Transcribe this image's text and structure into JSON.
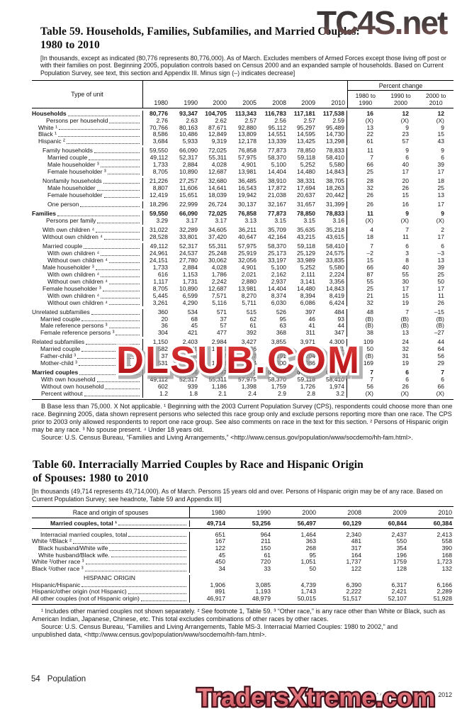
{
  "watermarks": {
    "top": "TC4S.net",
    "middle": "DLSUB.COM",
    "bottom": "TradersXtreme.com"
  },
  "footer": {
    "page_number": "54",
    "section_label": "Population",
    "source_line": "U.S. Census Bureau, Statistical Abstract of the United States: 2012"
  },
  "table59": {
    "title_line1": "Table 59. Households, Families, Subfamilies, and Married Couples:",
    "title_line2": "1980 to 2010",
    "headnote": "[In thousands, except as indicated (80,776 represents 80,776,000). As of March. Excludes members of Armed Forces except those living off post or with their families on post. Beginning 2005, population controls based on Census 2000 and an expanded sample of households. Based on Current Population Survey, see text, this section and Appendix III. Minus sign (–) indicates decrease]",
    "stub_header": "Type of unit",
    "years": [
      "1980",
      "1990",
      "2000",
      "2005",
      "2008",
      "2009",
      "2010"
    ],
    "pct_group_header": "Percent change",
    "pct_headers": [
      "1980 to\n1990",
      "1990 to\n2000",
      "2000 to\n2010"
    ],
    "rows": [
      {
        "label": "Households",
        "ind": 0,
        "b": true,
        "gap": false,
        "v": [
          "80,776",
          "93,347",
          "104,705",
          "113,343",
          "116,783",
          "117,181",
          "117,538"
        ],
        "p": [
          "16",
          "12",
          "12"
        ]
      },
      {
        "label": "Persons per household",
        "ind": 20,
        "b": false,
        "gap": false,
        "v": [
          "2.76",
          "2.63",
          "2.62",
          "2.57",
          "2.56",
          "2.57",
          "2.59"
        ],
        "p": [
          "(X)",
          "(X)",
          "(X)"
        ]
      },
      {
        "label": "White ¹",
        "ind": 9,
        "b": false,
        "gap": false,
        "v": [
          "70,766",
          "80,163",
          "87,671",
          "92,880",
          "95,112",
          "95,297",
          "95,489"
        ],
        "p": [
          "13",
          "9",
          "9"
        ]
      },
      {
        "label": "Black ¹",
        "ind": 9,
        "b": false,
        "gap": false,
        "v": [
          "8,586",
          "10,486",
          "12,849",
          "13,809",
          "14,551",
          "14,595",
          "14,730"
        ],
        "p": [
          "22",
          "23",
          "15"
        ]
      },
      {
        "label": "Hispanic ²",
        "ind": 9,
        "b": false,
        "gap": false,
        "v": [
          "3,684",
          "5,933",
          "9,319",
          "12,178",
          "13,339",
          "13,425",
          "13,298"
        ],
        "p": [
          "61",
          "57",
          "43"
        ]
      },
      {
        "label": "Family households",
        "ind": 15,
        "b": false,
        "gap": true,
        "v": [
          "59,550",
          "66,090",
          "72,025",
          "76,858",
          "77,873",
          "78,850",
          "78,833"
        ],
        "p": [
          "11",
          "9",
          "9"
        ]
      },
      {
        "label": "Married couple",
        "ind": 22,
        "b": false,
        "gap": false,
        "v": [
          "49,112",
          "52,317",
          "55,311",
          "57,975",
          "58,370",
          "59,118",
          "58,410"
        ],
        "p": [
          "7",
          "6",
          "6"
        ]
      },
      {
        "label": "Male householder ³",
        "ind": 22,
        "b": false,
        "gap": false,
        "v": [
          "1,733",
          "2,884",
          "4,028",
          "4,901",
          "5,100",
          "5,252",
          "5,580"
        ],
        "p": [
          "66",
          "40",
          "39"
        ]
      },
      {
        "label": "Female householder ³",
        "ind": 22,
        "b": false,
        "gap": false,
        "v": [
          "8,705",
          "10,890",
          "12,687",
          "13,981",
          "14,404",
          "14,480",
          "14,843"
        ],
        "p": [
          "25",
          "17",
          "17"
        ]
      },
      {
        "label": "Nonfamily households",
        "ind": 15,
        "b": false,
        "gap": true,
        "v": [
          "21,226",
          "27,257",
          "32,680",
          "36,485",
          "38,910",
          "38,331",
          "38,705"
        ],
        "p": [
          "28",
          "20",
          "18"
        ]
      },
      {
        "label": "Male householder",
        "ind": 22,
        "b": false,
        "gap": false,
        "v": [
          "8,807",
          "11,606",
          "14,641",
          "16,543",
          "17,872",
          "17,694",
          "18,263"
        ],
        "p": [
          "32",
          "26",
          "25"
        ]
      },
      {
        "label": "Female householder",
        "ind": 22,
        "b": false,
        "gap": false,
        "v": [
          "12,419",
          "15,651",
          "18,039",
          "19,942",
          "21,038",
          "20,637",
          "20,442"
        ],
        "p": [
          "26",
          "15",
          "13"
        ]
      },
      {
        "label": "One person",
        "ind": 22,
        "b": false,
        "gap": true,
        "v": [
          "18,296",
          "22,999",
          "26,724",
          "30,137",
          "32,167",
          "31,657",
          "31,399"
        ],
        "p": [
          "26",
          "16",
          "17"
        ]
      },
      {
        "label": "Families",
        "ind": 0,
        "b": true,
        "gap": true,
        "v": [
          "59,550",
          "66,090",
          "72,025",
          "76,858",
          "77,873",
          "78,850",
          "78,833"
        ],
        "p": [
          "11",
          "9",
          "9"
        ]
      },
      {
        "label": "Persons per family",
        "ind": 20,
        "b": false,
        "gap": false,
        "v": [
          "3.29",
          "3.17",
          "3.17",
          "3.13",
          "3.15",
          "3.15",
          "3.16"
        ],
        "p": [
          "(X)",
          "(X)",
          "(X)"
        ]
      },
      {
        "label": "With own children ⁴",
        "ind": 15,
        "b": false,
        "gap": true,
        "v": [
          "31,022",
          "32,289",
          "34,605",
          "36,211",
          "35,709",
          "35,635",
          "35,218"
        ],
        "p": [
          "4",
          "7",
          "2"
        ]
      },
      {
        "label": "Without own children ⁴",
        "ind": 15,
        "b": false,
        "gap": false,
        "v": [
          "28,528",
          "33,801",
          "37,420",
          "40,647",
          "42,164",
          "43,215",
          "43,615"
        ],
        "p": [
          "18",
          "11",
          "17"
        ]
      },
      {
        "label": "Married couple",
        "ind": 15,
        "b": false,
        "gap": true,
        "v": [
          "49,112",
          "52,317",
          "55,311",
          "57,975",
          "58,370",
          "59,118",
          "58,410"
        ],
        "p": [
          "7",
          "6",
          "6"
        ]
      },
      {
        "label": "With own children ⁴",
        "ind": 22,
        "b": false,
        "gap": false,
        "v": [
          "24,961",
          "24,537",
          "25,248",
          "25,919",
          "25,173",
          "25,129",
          "24,575"
        ],
        "p": [
          "–2",
          "3",
          "–3"
        ]
      },
      {
        "label": "Without own children ⁴",
        "ind": 22,
        "b": false,
        "gap": false,
        "v": [
          "24,151",
          "27,780",
          "30,062",
          "32,056",
          "33,197",
          "33,989",
          "33,835"
        ],
        "p": [
          "15",
          "8",
          "13"
        ]
      },
      {
        "label": "Male householder ³",
        "ind": 15,
        "b": false,
        "gap": false,
        "v": [
          "1,733",
          "2,884",
          "4,028",
          "4,901",
          "5,100",
          "5,252",
          "5,580"
        ],
        "p": [
          "66",
          "40",
          "39"
        ]
      },
      {
        "label": "With own children ⁴",
        "ind": 22,
        "b": false,
        "gap": false,
        "v": [
          "616",
          "1,153",
          "1,786",
          "2,021",
          "2,162",
          "2,111",
          "2,224"
        ],
        "p": [
          "87",
          "55",
          "25"
        ]
      },
      {
        "label": "Without own children ⁴",
        "ind": 22,
        "b": false,
        "gap": false,
        "v": [
          "1,117",
          "1,731",
          "2,242",
          "2,880",
          "2,937",
          "3,141",
          "3,356"
        ],
        "p": [
          "55",
          "30",
          "50"
        ]
      },
      {
        "label": "Female householder ³",
        "ind": 15,
        "b": false,
        "gap": false,
        "v": [
          "8,705",
          "10,890",
          "12,687",
          "13,981",
          "14,404",
          "14,480",
          "14,843"
        ],
        "p": [
          "25",
          "17",
          "17"
        ]
      },
      {
        "label": "With own children ⁴",
        "ind": 22,
        "b": false,
        "gap": false,
        "v": [
          "5,445",
          "6,599",
          "7,571",
          "8,270",
          "8,374",
          "8,394",
          "8,419"
        ],
        "p": [
          "21",
          "15",
          "11"
        ]
      },
      {
        "label": "Without own children ⁴",
        "ind": 22,
        "b": false,
        "gap": false,
        "v": [
          "3,261",
          "4,290",
          "5,116",
          "5,711",
          "6,030",
          "6,086",
          "6,424"
        ],
        "p": [
          "32",
          "19",
          "26"
        ]
      },
      {
        "label": "Unrelated subfamilies",
        "ind": 0,
        "b": false,
        "gap": true,
        "v": [
          "360",
          "534",
          "571",
          "515",
          "526",
          "397",
          "484"
        ],
        "p": [
          "48",
          "7",
          "–15"
        ]
      },
      {
        "label": "Married couple",
        "ind": 12,
        "b": false,
        "gap": false,
        "v": [
          "20",
          "68",
          "37",
          "62",
          "95",
          "46",
          "93"
        ],
        "p": [
          "(B)",
          "(B)",
          "(B)"
        ]
      },
      {
        "label": "Male reference persons ³",
        "ind": 12,
        "b": false,
        "gap": false,
        "v": [
          "36",
          "45",
          "57",
          "61",
          "63",
          "41",
          "44"
        ],
        "p": [
          "(B)",
          "(B)",
          "(B)"
        ]
      },
      {
        "label": "Female reference persons ³",
        "ind": 12,
        "b": false,
        "gap": false,
        "v": [
          "304",
          "421",
          "477",
          "392",
          "368",
          "311",
          "347"
        ],
        "p": [
          "38",
          "13",
          "–27"
        ]
      },
      {
        "label": "Related subfamilies",
        "ind": 0,
        "b": false,
        "gap": true,
        "v": [
          "1,150",
          "2,403",
          "2,984",
          "3,427",
          "3,855",
          "3,971",
          "4,300"
        ],
        "p": [
          "109",
          "24",
          "44"
        ]
      },
      {
        "label": "Married couple",
        "ind": 12,
        "b": false,
        "gap": false,
        "v": [
          "582",
          "871",
          "1,149",
          "1,336",
          "1,664",
          "1,681",
          "1,881"
        ],
        "p": [
          "50",
          "32",
          "64"
        ]
      },
      {
        "label": "Father-child ³",
        "ind": 12,
        "b": false,
        "gap": false,
        "v": [
          "37",
          "104",
          "137",
          "187",
          "191",
          "204",
          "213"
        ],
        "p": [
          "(B)",
          "31",
          "56"
        ]
      },
      {
        "label": "Mother-child ³",
        "ind": 12,
        "b": false,
        "gap": false,
        "v": [
          "531",
          "1,428",
          "1,698",
          "1,904",
          "2,000",
          "2,086",
          "2,206"
        ],
        "p": [
          "169",
          "19",
          "29"
        ]
      },
      {
        "label": "Married couples",
        "ind": 0,
        "b": true,
        "gap": true,
        "v": [
          "49,714",
          "53,256",
          "56,497",
          "59,373",
          "60,129",
          "60,844",
          "60,384"
        ],
        "p": [
          "7",
          "6",
          "7"
        ]
      },
      {
        "label": "With own household",
        "ind": 13,
        "b": false,
        "gap": false,
        "v": [
          "49,112",
          "52,317",
          "55,311",
          "57,975",
          "58,370",
          "59,118",
          "58,410"
        ],
        "p": [
          "7",
          "6",
          "6"
        ]
      },
      {
        "label": "Without own household",
        "ind": 13,
        "b": false,
        "gap": false,
        "v": [
          "602",
          "939",
          "1,186",
          "1,398",
          "1,759",
          "1,726",
          "1,974"
        ],
        "p": [
          "56",
          "26",
          "66"
        ]
      },
      {
        "label": "Percent without",
        "ind": 13,
        "b": false,
        "gap": false,
        "v": [
          "1.2",
          "1.8",
          "2.1",
          "2.4",
          "2.9",
          "2.8",
          "3.2"
        ],
        "p": [
          "(X)",
          "(X)",
          "(X)"
        ]
      }
    ],
    "footnote": "B Base less than 75,000. X Not applicable. ¹ Beginning with the 2003 Current Population Survey (CPS), respondents could choose more than one race. Beginning 2005, data shown represent persons who selected this race group only and exclude persons reporting more than one race. The CPS prior to 2003 only allowed respondents to report one race group. See also comments on race in the text for this section. ² Persons of Hispanic origin may be any race. ³ No spouse present. ⁴ Under 18 years old.",
    "source": "Source: U.S. Census Bureau, “Families and Living Arrangements,” <http://www.census.gov/population/www/socdemo/hh-fam.html>."
  },
  "table60": {
    "title_line1": "Table 60. Interracially Married Couples by Race and Hispanic Origin",
    "title_line2": "of Spouses: 1980 to 2010",
    "headnote": "[In thousands (49,714 represents 49,714,000). As of March. Persons 15 years old and over. Persons of Hispanic origin may be of any race. Based on Current Population Survey; see headnote, Table 59 and Appendix III]",
    "stub_header": "Race and origin of spouses",
    "years": [
      "1980",
      "1990",
      "2000",
      "2008",
      "2009",
      "2010"
    ],
    "rows": [
      {
        "label": "Married couples, total ¹",
        "ind": 26,
        "b": true,
        "rule": true,
        "gap": false,
        "v": [
          "49,714",
          "53,256",
          "56,497",
          "60,129",
          "60,844",
          "60,384"
        ]
      },
      {
        "label": "Interracial married couples, total",
        "ind": 12,
        "b": false,
        "gap": true,
        "v": [
          "651",
          "964",
          "1,464",
          "2,340",
          "2,437",
          "2,413"
        ]
      },
      {
        "label": "White ²/Black ²",
        "ind": 0,
        "b": false,
        "gap": false,
        "v": [
          "167",
          "211",
          "363",
          "481",
          "550",
          "558"
        ]
      },
      {
        "label": "Black husband/White wife",
        "ind": 9,
        "b": false,
        "gap": false,
        "v": [
          "122",
          "150",
          "268",
          "317",
          "354",
          "390"
        ]
      },
      {
        "label": "White husband/Black wife.",
        "ind": 9,
        "b": false,
        "gap": false,
        "v": [
          "45",
          "61",
          "95",
          "164",
          "196",
          "168"
        ]
      },
      {
        "label": "White ²/other race ³",
        "ind": 0,
        "b": false,
        "gap": false,
        "v": [
          "450",
          "720",
          "1,051",
          "1,737",
          "1759",
          "1,723"
        ]
      },
      {
        "label": "Black ²/other race ³",
        "ind": 0,
        "b": false,
        "gap": false,
        "v": [
          "34",
          "33",
          "50",
          "122",
          "128",
          "132"
        ]
      },
      {
        "label": "HISPANIC ORIGIN",
        "sec": true,
        "v": [
          "",
          "",
          "",
          "",
          "",
          ""
        ]
      },
      {
        "label": "Hispanic/Hispanic",
        "ind": 0,
        "b": false,
        "gap": false,
        "v": [
          "1,906",
          "3,085",
          "4,739",
          "6,390",
          "6,317",
          "6,166"
        ]
      },
      {
        "label": "Hispanic/other origin (not Hispanic)",
        "ind": 0,
        "b": false,
        "gap": false,
        "v": [
          "891",
          "1,193",
          "1,743",
          "2,222",
          "2,421",
          "2,289"
        ]
      },
      {
        "label": "All other couples (not of Hispanic origin)",
        "ind": 0,
        "b": false,
        "gap": false,
        "v": [
          "46,917",
          "48,979",
          "50,015",
          "51,517",
          "52,107",
          "51,928"
        ]
      }
    ],
    "footnote": "¹ Includes other married couples not shown separately. ² See footnote 1, Table 59. ³ “Other race,” is any race other than White or Black, such as American Indian, Japanese, Chinese, etc. This total excludes combinations of other races by other races.",
    "source": "Source: U.S. Census Bureau, “Families and Living Arrangements, Table MS-3. Interracial Married Couples: 1980 to 2002,” and unpublished data, <http://www.census.gov/population/www/socdemo/hh-fam.html>."
  }
}
